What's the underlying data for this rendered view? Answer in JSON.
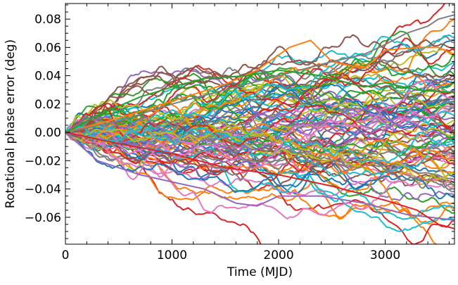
{
  "chart_data": {
    "type": "line",
    "title": "",
    "xlabel": "Time (MJD)",
    "ylabel": "Rotational phase error (deg)",
    "xlim": [
      0,
      3650
    ],
    "ylim": [
      -0.079,
      0.091
    ],
    "xticks": [
      0,
      1000,
      2000,
      3000
    ],
    "yticks": [
      -0.06,
      -0.04,
      -0.02,
      0.0,
      0.02,
      0.04,
      0.06,
      0.08
    ],
    "ytick_labels": [
      "−0.06",
      "−0.04",
      "−0.02",
      "0.00",
      "0.02",
      "0.04",
      "0.06",
      "0.08"
    ],
    "xtick_labels": [
      "0",
      "1000",
      "2000",
      "3000"
    ],
    "grid": false,
    "legend": "none",
    "n_series": 100,
    "samples_per_series": 150,
    "series_start": {
      "x": 0,
      "y": 0.0
    },
    "colors": [
      "#1f77b4",
      "#ff7f0e",
      "#2ca02c",
      "#d62728",
      "#9467bd",
      "#8c564b",
      "#e377c2",
      "#7f7f7f",
      "#bcbd22",
      "#17becf"
    ],
    "highlighted_series": [
      {
        "x": [
          0,
          500,
          1000,
          1500,
          1800,
          2100,
          2300,
          2500,
          2800,
          3000,
          3300,
          3500,
          3650
        ],
        "y": [
          0.0,
          0.01,
          0.022,
          0.034,
          0.044,
          0.06,
          0.065,
          0.05,
          0.045,
          0.058,
          0.06,
          0.06,
          0.055
        ],
        "color": "#ff7f0e"
      },
      {
        "x": [
          0,
          500,
          1000,
          1500,
          2000,
          2500,
          2800,
          3000,
          3200,
          3400,
          3500,
          3650
        ],
        "y": [
          0.0,
          0.008,
          0.02,
          0.03,
          0.04,
          0.05,
          0.055,
          0.062,
          0.07,
          0.075,
          0.08,
          0.083
        ],
        "color": "#7f7f7f"
      },
      {
        "x": [
          0,
          300,
          700,
          1000,
          1300,
          1600,
          1800,
          2000,
          2400,
          2800,
          3200,
          3650
        ],
        "y": [
          0.0,
          -0.02,
          -0.03,
          -0.035,
          -0.04,
          -0.05,
          -0.052,
          -0.045,
          -0.045,
          -0.05,
          -0.058,
          -0.062
        ],
        "color": "#9467bd"
      },
      {
        "x": [
          0,
          500,
          1000,
          1500,
          2000,
          2500,
          3000,
          3300,
          3500,
          3650
        ],
        "y": [
          0.0,
          -0.008,
          -0.015,
          -0.025,
          -0.03,
          -0.038,
          -0.048,
          -0.055,
          -0.065,
          -0.068
        ],
        "color": "#d62728"
      },
      {
        "x": [
          0,
          300,
          700,
          1000,
          1300,
          1700,
          2000,
          2400,
          2800,
          3000,
          3300,
          3650
        ],
        "y": [
          0.0,
          0.012,
          0.025,
          0.032,
          0.038,
          0.04,
          0.044,
          0.04,
          0.032,
          0.035,
          0.03,
          0.028
        ],
        "color": "#2ca02c"
      }
    ]
  }
}
